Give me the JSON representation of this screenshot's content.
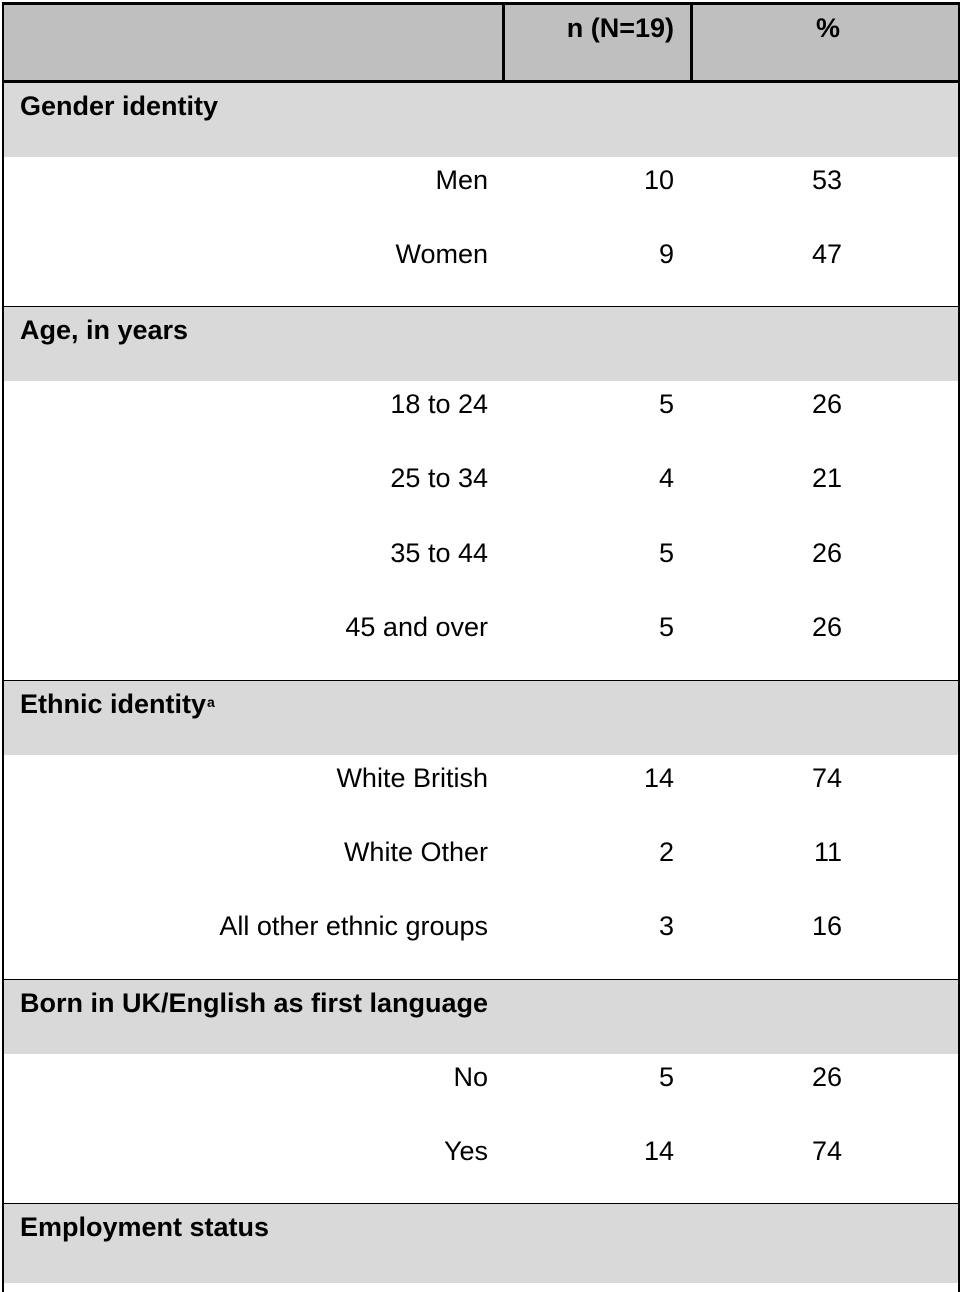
{
  "header": {
    "col_label": "",
    "col_n": "n (N=19)",
    "col_pct": "%"
  },
  "sections": [
    {
      "title": "Gender identity",
      "rows": [
        {
          "label": "Men",
          "n": "10",
          "pct": "53"
        },
        {
          "label": "Women",
          "n": "9",
          "pct": "47"
        }
      ]
    },
    {
      "title": "Age, in years",
      "rows": [
        {
          "label": "18 to 24",
          "n": "5",
          "pct": "26"
        },
        {
          "label": "25 to 34",
          "n": "4",
          "pct": "21"
        },
        {
          "label": "35 to 44",
          "n": "5",
          "pct": "26"
        },
        {
          "label": "45 and over",
          "n": "5",
          "pct": "26"
        }
      ]
    },
    {
      "title": "Ethnic identity",
      "title_sup": "a",
      "rows": [
        {
          "label": "White British",
          "n": "14",
          "pct": "74"
        },
        {
          "label": "White Other",
          "n": "2",
          "pct": "11"
        },
        {
          "label": "All other ethnic groups",
          "n": "3",
          "pct": "16"
        }
      ]
    },
    {
      "title": "Born in UK/English as first language",
      "rows": [
        {
          "label": "No",
          "n": "5",
          "pct": "26"
        },
        {
          "label": "Yes",
          "n": "14",
          "pct": "74"
        }
      ]
    },
    {
      "title": "Employment status",
      "rows": []
    }
  ],
  "colors": {
    "header_bg": "#bfbfbf",
    "section_bg": "#d9d9d9",
    "row_bg": "#ffffff",
    "border": "#000000"
  }
}
